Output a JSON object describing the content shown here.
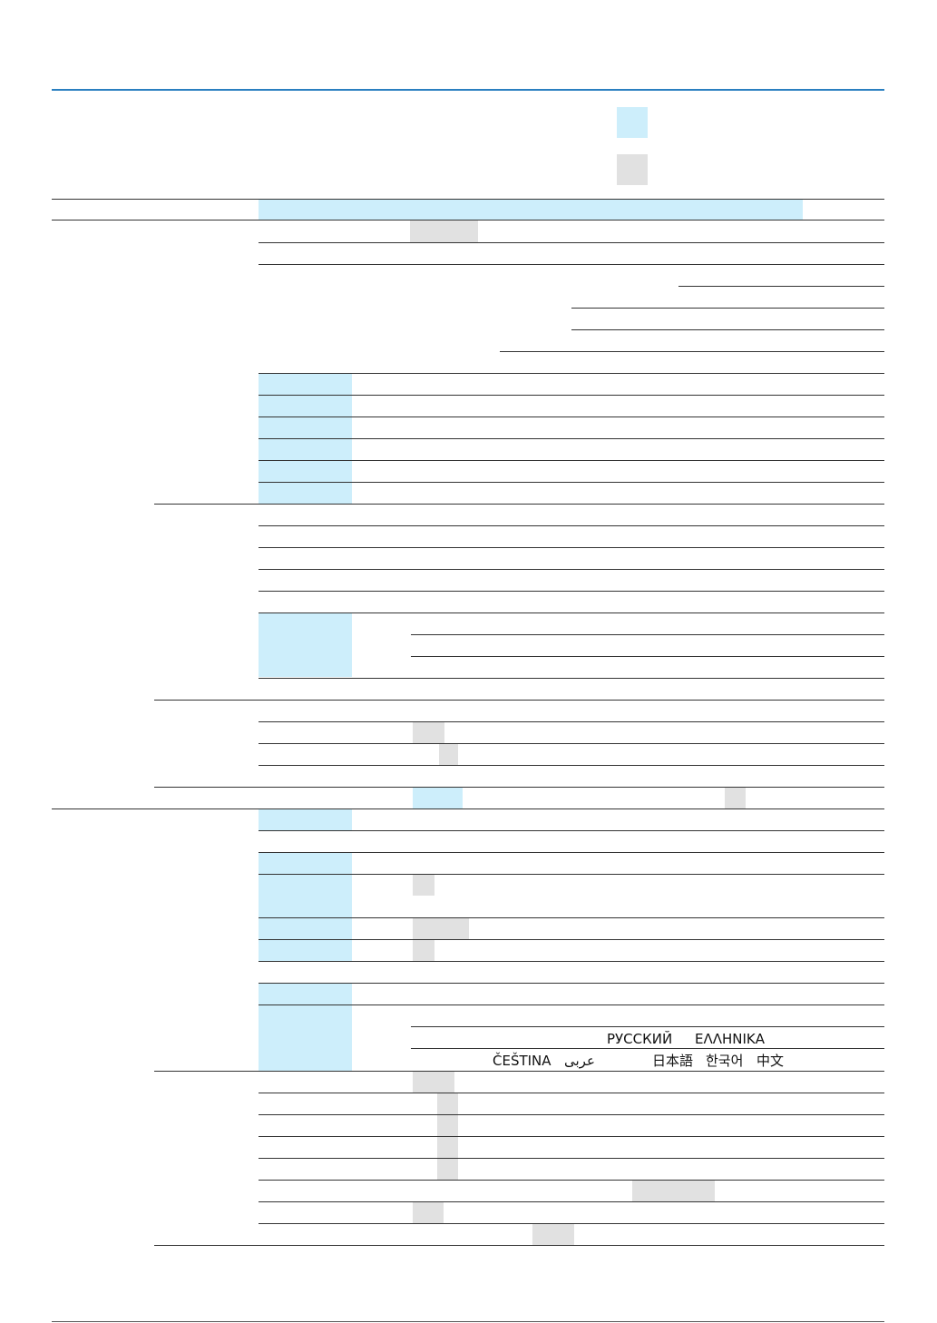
{
  "legend": {
    "key_color_primary": "#cdeefb",
    "key_color_secondary": "#e1e1e1"
  },
  "table": {
    "rule_color": "#2a7fc0",
    "language_row_1": [
      "РУССКИЙ",
      "ΕΛΛΗΝΙΚΑ"
    ],
    "language_row_2": [
      "ČEŠTINA",
      "عربى",
      "日本語",
      "한국어",
      "中文"
    ]
  }
}
